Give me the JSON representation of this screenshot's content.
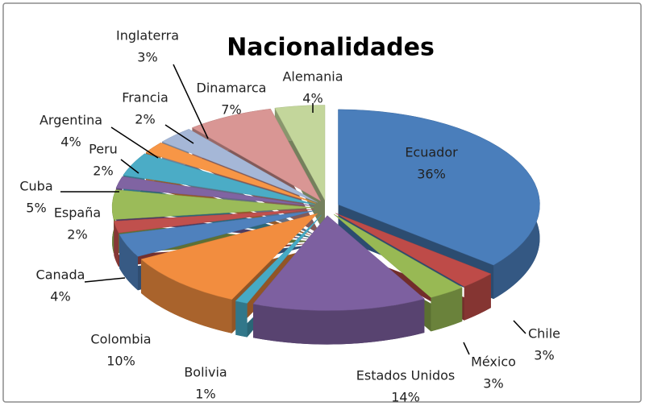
{
  "chart_data": {
    "type": "pie",
    "title": "Nacionalidades",
    "categories": [
      "Ecuador",
      "Chile",
      "México",
      "Estados Unidos",
      "Bolivia",
      "Colombia",
      "Canada",
      "España",
      "Cuba",
      "Peru",
      "Argentina",
      "Francia",
      "Inglaterra",
      "Dinamarca",
      "Alemania"
    ],
    "values": [
      36,
      3,
      3,
      14,
      1,
      10,
      4,
      2,
      5,
      2,
      4,
      2,
      3,
      7,
      4
    ],
    "value_labels": [
      "36%",
      "3%",
      "3%",
      "14%",
      "1%",
      "10%",
      "4%",
      "2%",
      "5%",
      "2%",
      "4%",
      "2%",
      "3%",
      "7%",
      "4%"
    ],
    "colors": [
      "#4a7ebb",
      "#be4b48",
      "#98b954",
      "#7d60a0",
      "#46aac5",
      "#f28d3f",
      "#4f81bd",
      "#c0504d",
      "#9bbb59",
      "#8064a2",
      "#4bacc6",
      "#f79646",
      "#a5b7d7",
      "#d99694",
      "#c3d69b"
    ]
  }
}
